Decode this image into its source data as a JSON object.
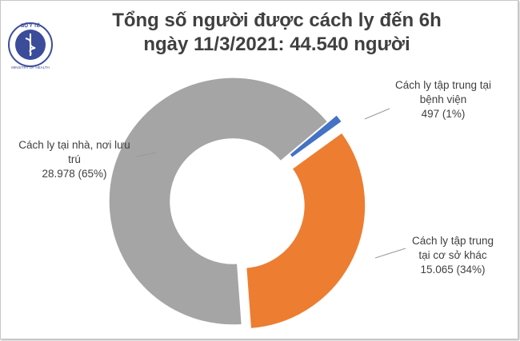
{
  "logo": {
    "top": "BỘ Y TẾ",
    "bottom": "MINISTRY OF HEALTH"
  },
  "chart_data": {
    "type": "donut",
    "title": "Tổng số người được cách ly đến 6h ngày 11/3/2021: 44.540 người",
    "categories": [
      "Cách ly tập trung tại bệnh viện",
      "Cách ly tập trung tại cơ sở khác",
      "Cách ly tại nhà, nơi lưu trú"
    ],
    "values": [
      497,
      15065,
      28978
    ],
    "value_labels": [
      "497 (1%)",
      "15.065 (34%)",
      "28.978 (65%)"
    ],
    "colors": [
      "#4472c4",
      "#ed7d31",
      "#a5a5a5"
    ]
  }
}
